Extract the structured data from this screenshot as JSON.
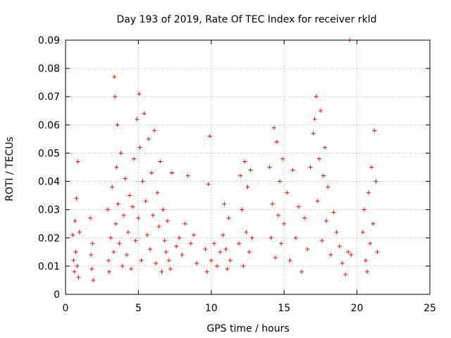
{
  "chart_data": {
    "type": "scatter",
    "title": "Day 193 of 2019, Rate Of TEC Index for receiver rkld",
    "xlabel": "GPS time / hours",
    "ylabel": "ROTI / TECUs",
    "xlim": [
      0,
      25
    ],
    "ylim": [
      0,
      0.09
    ],
    "xticks": [
      0,
      5,
      10,
      15,
      20,
      25
    ],
    "xtick_labels": [
      "0",
      "5",
      "10",
      "15",
      "20",
      "25"
    ],
    "yticks": [
      0,
      0.01,
      0.02,
      0.03,
      0.04,
      0.05,
      0.06,
      0.07,
      0.08,
      0.09
    ],
    "ytick_labels": [
      "0",
      "0.01",
      "0.02",
      "0.03",
      "0.04",
      "0.05",
      "0.06",
      "0.07",
      "0.08",
      "0.09"
    ],
    "grid": true,
    "marker": "+",
    "color": "#ff0000",
    "series": [
      {
        "name": "ROTI",
        "points": [
          [
            0.5,
            0.021
          ],
          [
            0.55,
            0.012
          ],
          [
            0.6,
            0.008
          ],
          [
            0.65,
            0.026
          ],
          [
            0.7,
            0.015
          ],
          [
            0.75,
            0.034
          ],
          [
            0.8,
            0.01
          ],
          [
            0.85,
            0.047
          ],
          [
            0.9,
            0.006
          ],
          [
            0.95,
            0.022
          ],
          [
            1.7,
            0.027
          ],
          [
            1.75,
            0.014
          ],
          [
            1.8,
            0.009
          ],
          [
            1.85,
            0.018
          ],
          [
            1.9,
            0.005
          ],
          [
            2.9,
            0.03
          ],
          [
            2.95,
            0.012
          ],
          [
            3.0,
            0.008
          ],
          [
            3.1,
            0.02
          ],
          [
            3.2,
            0.038
          ],
          [
            3.3,
            0.015
          ],
          [
            3.35,
            0.077
          ],
          [
            3.4,
            0.07
          ],
          [
            3.45,
            0.025
          ],
          [
            3.5,
            0.045
          ],
          [
            3.55,
            0.06
          ],
          [
            3.6,
            0.032
          ],
          [
            3.7,
            0.018
          ],
          [
            3.8,
            0.05
          ],
          [
            3.9,
            0.01
          ],
          [
            4.0,
            0.028
          ],
          [
            4.1,
            0.041
          ],
          [
            4.2,
            0.014
          ],
          [
            4.3,
            0.022
          ],
          [
            4.4,
            0.035
          ],
          [
            4.5,
            0.009
          ],
          [
            4.6,
            0.031
          ],
          [
            4.7,
            0.048
          ],
          [
            4.8,
            0.019
          ],
          [
            4.9,
            0.062
          ],
          [
            5.0,
            0.027
          ],
          [
            5.05,
            0.071
          ],
          [
            5.1,
            0.052
          ],
          [
            5.2,
            0.012
          ],
          [
            5.3,
            0.04
          ],
          [
            5.4,
            0.064
          ],
          [
            5.5,
            0.033
          ],
          [
            5.6,
            0.021
          ],
          [
            5.7,
            0.055
          ],
          [
            5.8,
            0.016
          ],
          [
            5.9,
            0.043
          ],
          [
            6.0,
            0.028
          ],
          [
            6.1,
            0.058
          ],
          [
            6.2,
            0.011
          ],
          [
            6.3,
            0.036
          ],
          [
            6.4,
            0.024
          ],
          [
            6.5,
            0.047
          ],
          [
            6.6,
            0.008
          ],
          [
            6.7,
            0.03
          ],
          [
            6.8,
            0.019
          ],
          [
            6.9,
            0.015
          ],
          [
            7.0,
            0.026
          ],
          [
            7.1,
            0.012
          ],
          [
            7.2,
            0.009
          ],
          [
            7.3,
            0.043
          ],
          [
            7.6,
            0.017
          ],
          [
            7.8,
            0.02
          ],
          [
            8.0,
            0.014
          ],
          [
            8.2,
            0.025
          ],
          [
            8.4,
            0.042
          ],
          [
            8.6,
            0.018
          ],
          [
            8.8,
            0.021
          ],
          [
            9.0,
            0.011
          ],
          [
            9.6,
            0.016
          ],
          [
            9.7,
            0.008
          ],
          [
            9.8,
            0.039
          ],
          [
            9.9,
            0.056
          ],
          [
            10.0,
            0.012
          ],
          [
            10.2,
            0.018
          ],
          [
            10.4,
            0.01
          ],
          [
            10.6,
            0.015
          ],
          [
            10.8,
            0.021
          ],
          [
            10.9,
            0.032
          ],
          [
            11.0,
            0.016
          ],
          [
            11.1,
            0.009
          ],
          [
            11.2,
            0.027
          ],
          [
            11.3,
            0.012
          ],
          [
            11.9,
            0.018
          ],
          [
            12.0,
            0.042
          ],
          [
            12.1,
            0.03
          ],
          [
            12.2,
            0.01
          ],
          [
            12.3,
            0.047
          ],
          [
            12.4,
            0.022
          ],
          [
            12.5,
            0.038
          ],
          [
            12.6,
            0.015
          ],
          [
            12.7,
            0.044
          ],
          [
            12.8,
            0.02
          ],
          [
            14.0,
            0.045
          ],
          [
            14.1,
            0.02
          ],
          [
            14.2,
            0.032
          ],
          [
            14.3,
            0.059
          ],
          [
            14.4,
            0.013
          ],
          [
            14.5,
            0.054
          ],
          [
            14.6,
            0.028
          ],
          [
            14.7,
            0.04
          ],
          [
            14.8,
            0.018
          ],
          [
            14.9,
            0.048
          ],
          [
            15.0,
            0.025
          ],
          [
            15.2,
            0.036
          ],
          [
            15.4,
            0.012
          ],
          [
            15.6,
            0.044
          ],
          [
            15.8,
            0.02
          ],
          [
            16.0,
            0.031
          ],
          [
            16.2,
            0.008
          ],
          [
            16.4,
            0.027
          ],
          [
            16.6,
            0.016
          ],
          [
            16.8,
            0.045
          ],
          [
            17.0,
            0.057
          ],
          [
            17.1,
            0.062
          ],
          [
            17.2,
            0.07
          ],
          [
            17.3,
            0.033
          ],
          [
            17.4,
            0.048
          ],
          [
            17.5,
            0.065
          ],
          [
            17.6,
            0.019
          ],
          [
            17.7,
            0.042
          ],
          [
            17.8,
            0.052
          ],
          [
            17.9,
            0.026
          ],
          [
            18.0,
            0.038
          ],
          [
            18.2,
            0.014
          ],
          [
            18.4,
            0.029
          ],
          [
            18.6,
            0.022
          ],
          [
            18.8,
            0.017
          ],
          [
            19.0,
            0.011
          ],
          [
            19.2,
            0.007
          ],
          [
            19.4,
            0.015
          ],
          [
            19.5,
            0.09
          ],
          [
            19.6,
            0.014
          ],
          [
            20.4,
            0.022
          ],
          [
            20.5,
            0.03
          ],
          [
            20.6,
            0.012
          ],
          [
            20.7,
            0.008
          ],
          [
            20.8,
            0.036
          ],
          [
            20.9,
            0.018
          ],
          [
            21.0,
            0.045
          ],
          [
            21.1,
            0.025
          ],
          [
            21.2,
            0.058
          ],
          [
            21.3,
            0.04
          ],
          [
            21.4,
            0.015
          ]
        ]
      }
    ]
  }
}
